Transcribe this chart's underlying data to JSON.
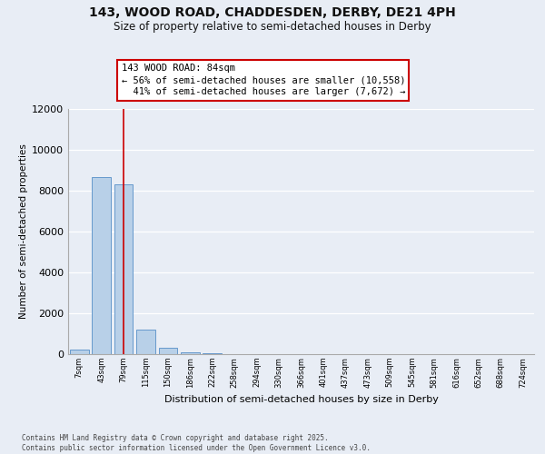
{
  "title_line1": "143, WOOD ROAD, CHADDESDEN, DERBY, DE21 4PH",
  "title_line2": "Size of property relative to semi-detached houses in Derby",
  "xlabel": "Distribution of semi-detached houses by size in Derby",
  "ylabel": "Number of semi-detached properties",
  "footnote1": "Contains HM Land Registry data © Crown copyright and database right 2025.",
  "footnote2": "Contains public sector information licensed under the Open Government Licence v3.0.",
  "property_label": "143 WOOD ROAD: 84sqm",
  "arrow_left": "← 56% of semi-detached houses are smaller (10,558)",
  "arrow_right": "41% of semi-detached houses are larger (7,672) →",
  "property_bin_index": 2,
  "categories": [
    "7sqm",
    "43sqm",
    "79sqm",
    "115sqm",
    "150sqm",
    "186sqm",
    "222sqm",
    "258sqm",
    "294sqm",
    "330sqm",
    "366sqm",
    "401sqm",
    "437sqm",
    "473sqm",
    "509sqm",
    "545sqm",
    "581sqm",
    "616sqm",
    "652sqm",
    "688sqm",
    "724sqm"
  ],
  "values": [
    230,
    8680,
    8300,
    1200,
    320,
    105,
    50,
    0,
    0,
    0,
    0,
    0,
    0,
    0,
    0,
    0,
    0,
    0,
    0,
    0,
    0
  ],
  "bar_color": "#b8d0e8",
  "bar_edge_color": "#6699cc",
  "vline_color": "#cc0000",
  "annotation_edge_color": "#cc0000",
  "background_color": "#e8edf5",
  "grid_color": "#ffffff",
  "ylim_max": 12000,
  "ytick_step": 2000
}
